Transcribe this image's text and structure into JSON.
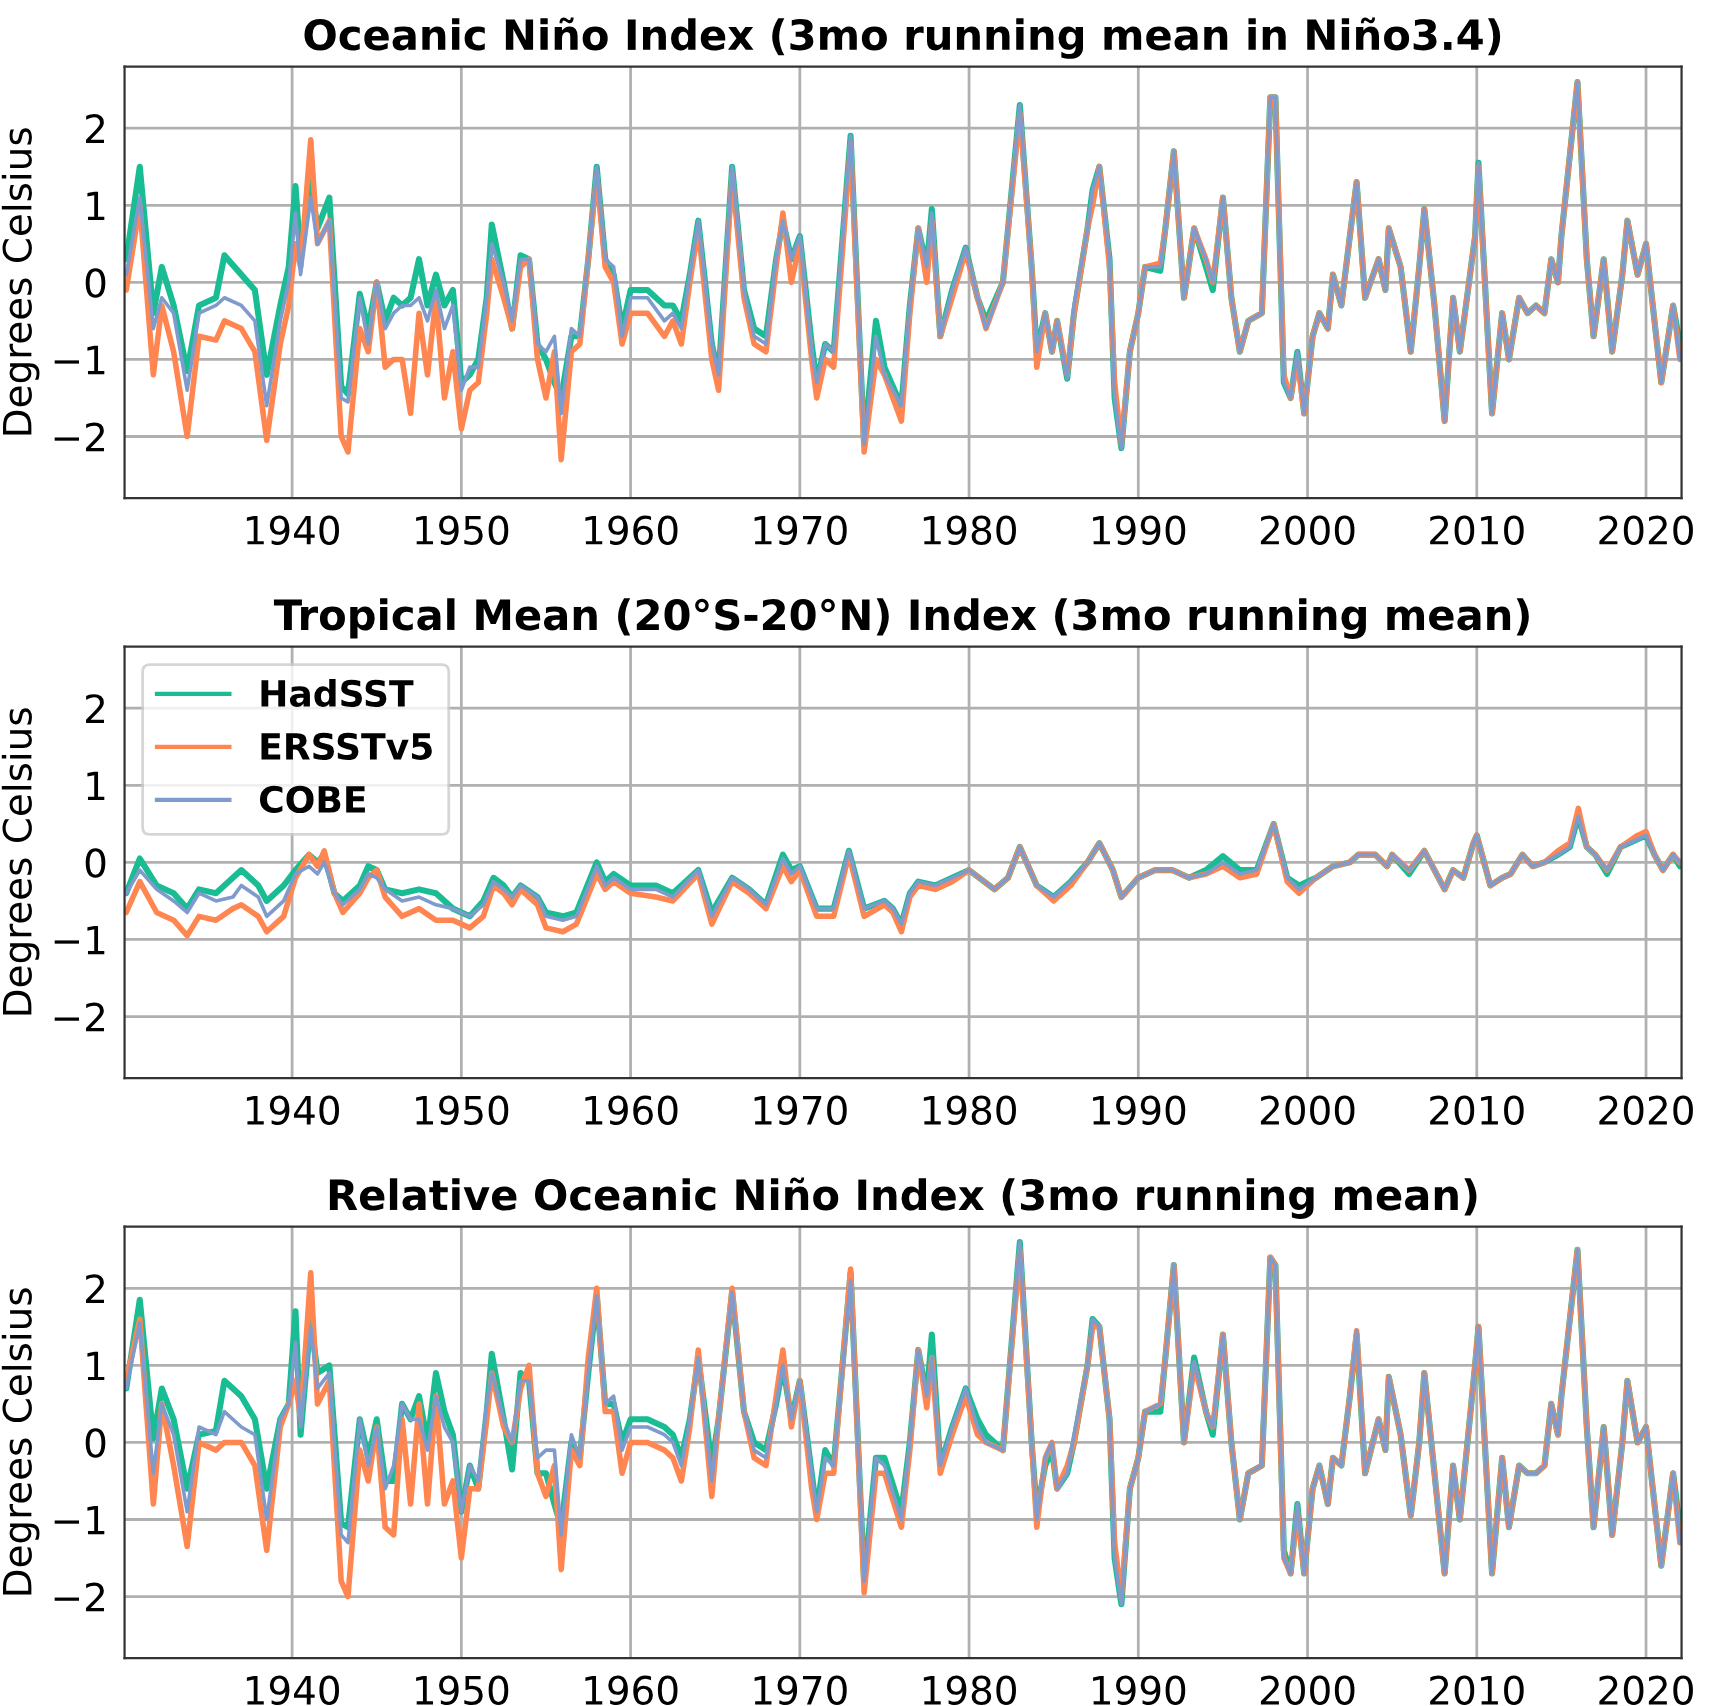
{
  "chart_data": [
    {
      "type": "line",
      "title": "Oceanic Niño Index (3mo running mean in Niño3.4)",
      "ylabel": "Degrees Celsius",
      "xlim": [
        1930.1,
        2022.1
      ],
      "ylim": [
        -2.8,
        2.8
      ],
      "xticks": [
        1940,
        1950,
        1960,
        1970,
        1980,
        1990,
        2000,
        2010,
        2020
      ],
      "yticks": [
        -2,
        -1,
        0,
        1,
        2
      ],
      "grid": true,
      "x": [
        1930.2,
        1931.0,
        1931.8,
        1932.3,
        1933.0,
        1933.8,
        1934.5,
        1935.5,
        1936.0,
        1937.0,
        1937.8,
        1938.5,
        1939.3,
        1939.8,
        1940.2,
        1940.5,
        1941.1,
        1941.5,
        1942.2,
        1942.9,
        1943.3,
        1944.0,
        1944.5,
        1945.0,
        1945.5,
        1946.0,
        1946.5,
        1947.0,
        1947.5,
        1948.0,
        1948.5,
        1949.0,
        1949.5,
        1950.0,
        1950.5,
        1951.0,
        1951.5,
        1951.8,
        1952.5,
        1953.0,
        1953.5,
        1954.0,
        1954.5,
        1955.0,
        1955.5,
        1955.9,
        1956.5,
        1957.0,
        1957.5,
        1958.0,
        1958.5,
        1959.0,
        1959.5,
        1960.0,
        1961.0,
        1962.0,
        1962.5,
        1963.0,
        1963.5,
        1964.0,
        1964.8,
        1965.2,
        1966.0,
        1966.7,
        1967.3,
        1968.0,
        1968.6,
        1969.0,
        1969.5,
        1970.0,
        1970.7,
        1971.0,
        1971.5,
        1972.0,
        1973.0,
        1973.8,
        1974.5,
        1975.0,
        1976.0,
        1976.5,
        1977.0,
        1977.5,
        1977.8,
        1978.3,
        1979.0,
        1979.8,
        1980.5,
        1981.0,
        1982.0,
        1983.0,
        1983.7,
        1984.0,
        1984.5,
        1984.9,
        1985.2,
        1985.8,
        1986.2,
        1987.0,
        1987.3,
        1987.7,
        1988.3,
        1988.6,
        1989.0,
        1989.5,
        1990.0,
        1990.4,
        1991.3,
        1991.6,
        1992.1,
        1992.7,
        1993.3,
        1994.0,
        1994.4,
        1995.0,
        1995.5,
        1996.0,
        1996.5,
        1997.3,
        1997.8,
        1998.1,
        1998.6,
        1999.0,
        1999.4,
        1999.8,
        2000.3,
        2000.7,
        2001.2,
        2001.5,
        2002.0,
        2002.5,
        2002.9,
        2003.4,
        2004.2,
        2004.6,
        2004.8,
        2005.5,
        2006.1,
        2006.6,
        2006.9,
        2007.5,
        2008.1,
        2008.6,
        2009.0,
        2009.9,
        2010.1,
        2010.9,
        2011.5,
        2011.9,
        2012.5,
        2013.0,
        2013.5,
        2014.0,
        2014.4,
        2014.8,
        2015.0,
        2015.95,
        2016.5,
        2016.9,
        2017.5,
        2018.0,
        2018.6,
        2018.9,
        2019.5,
        2020.0,
        2020.9,
        2021.6,
        2022.0
      ],
      "series": [
        {
          "color": "#1abc94",
          "values": [
            0.3,
            1.5,
            -0.4,
            0.2,
            -0.3,
            -1.15,
            -0.3,
            -0.2,
            0.35,
            0.1,
            -0.1,
            -1.2,
            -0.3,
            0.2,
            1.25,
            0.3,
            1.3,
            0.7,
            1.1,
            -1.35,
            -1.45,
            -0.15,
            -0.6,
            0.0,
            -0.5,
            -0.2,
            -0.3,
            -0.2,
            0.3,
            -0.3,
            0.1,
            -0.3,
            -0.1,
            -1.3,
            -1.2,
            -1.0,
            -0.2,
            0.75,
            0.0,
            -0.6,
            0.35,
            0.3,
            -0.8,
            -1.0,
            -1.3,
            -1.5,
            -0.7,
            -0.7,
            0.3,
            1.5,
            0.3,
            0.1,
            -0.6,
            -0.1,
            -0.1,
            -0.3,
            -0.3,
            -0.5,
            0.1,
            0.8,
            -0.8,
            -1.2,
            1.5,
            -0.1,
            -0.6,
            -0.7,
            0.3,
            0.8,
            0.3,
            0.6,
            -0.8,
            -1.3,
            -0.8,
            -0.9,
            1.9,
            -2.1,
            -0.5,
            -1.1,
            -1.6,
            -0.3,
            0.7,
            0.2,
            0.95,
            -0.7,
            -0.1,
            0.45,
            -0.2,
            -0.5,
            0.0,
            2.3,
            0.2,
            -0.9,
            -0.4,
            -0.9,
            -0.5,
            -1.25,
            -0.4,
            0.7,
            1.2,
            1.5,
            0.3,
            -1.5,
            -2.15,
            -0.9,
            -0.4,
            0.2,
            0.15,
            0.7,
            1.7,
            -0.2,
            0.7,
            0.2,
            -0.1,
            1.1,
            -0.2,
            -0.9,
            -0.5,
            -0.4,
            2.4,
            2.4,
            -1.3,
            -1.5,
            -0.9,
            -1.7,
            -0.7,
            -0.4,
            -0.6,
            0.1,
            -0.3,
            0.6,
            1.3,
            -0.2,
            0.3,
            -0.1,
            0.7,
            0.2,
            -0.9,
            0.2,
            0.95,
            -0.3,
            -1.8,
            -0.2,
            -0.9,
            0.6,
            1.55,
            -1.7,
            -0.4,
            -1.0,
            -0.2,
            -0.4,
            -0.3,
            -0.4,
            0.3,
            0.0,
            0.6,
            2.6,
            0.3,
            -0.7,
            0.3,
            -0.9,
            0.1,
            0.8,
            0.1,
            0.5,
            -1.3,
            -0.3,
            -0.8
          ]
        },
        {
          "color": "#ff8650",
          "values": [
            -0.1,
            1.0,
            -1.2,
            -0.3,
            -0.9,
            -2.0,
            -0.7,
            -0.75,
            -0.5,
            -0.6,
            -0.9,
            -2.05,
            -0.8,
            -0.3,
            0.5,
            0.2,
            1.85,
            0.5,
            0.8,
            -2.0,
            -2.2,
            -0.6,
            -0.9,
            0.0,
            -1.1,
            -1.0,
            -1.0,
            -1.7,
            -0.4,
            -1.2,
            -0.2,
            -1.5,
            -0.9,
            -1.9,
            -1.4,
            -1.3,
            -0.4,
            0.3,
            -0.2,
            -0.6,
            0.2,
            0.3,
            -1.0,
            -1.5,
            -0.9,
            -2.3,
            -0.9,
            -0.8,
            0.3,
            1.4,
            0.2,
            0.0,
            -0.8,
            -0.4,
            -0.4,
            -0.7,
            -0.5,
            -0.8,
            0.0,
            0.7,
            -1.0,
            -1.4,
            1.4,
            -0.2,
            -0.8,
            -0.9,
            0.2,
            0.9,
            0.0,
            0.5,
            -1.0,
            -1.5,
            -1.0,
            -1.1,
            1.8,
            -2.2,
            -1.0,
            -1.2,
            -1.8,
            -0.4,
            0.7,
            0.0,
            0.8,
            -0.7,
            -0.2,
            0.4,
            -0.2,
            -0.6,
            0.0,
            2.2,
            0.2,
            -1.1,
            -0.4,
            -0.9,
            -0.5,
            -1.2,
            -0.4,
            0.7,
            1.0,
            1.5,
            0.2,
            -1.3,
            -2.1,
            -0.9,
            -0.4,
            0.2,
            0.25,
            0.7,
            1.7,
            -0.2,
            0.7,
            0.3,
            0.0,
            1.1,
            -0.2,
            -0.9,
            -0.5,
            -0.4,
            2.4,
            2.4,
            -1.2,
            -1.5,
            -1.0,
            -1.7,
            -0.7,
            -0.4,
            -0.6,
            0.1,
            -0.3,
            0.6,
            1.3,
            -0.2,
            0.3,
            -0.1,
            0.7,
            0.2,
            -0.9,
            0.2,
            0.95,
            -0.3,
            -1.8,
            -0.2,
            -0.9,
            0.6,
            1.5,
            -1.7,
            -0.4,
            -1.0,
            -0.2,
            -0.4,
            -0.3,
            -0.4,
            0.3,
            0.0,
            0.6,
            2.6,
            0.3,
            -0.7,
            0.3,
            -0.9,
            0.1,
            0.8,
            0.1,
            0.5,
            -1.3,
            -0.3,
            -1.0
          ]
        },
        {
          "color": "#7f9acc",
          "values": [
            0.1,
            1.1,
            -0.6,
            -0.2,
            -0.4,
            -1.4,
            -0.4,
            -0.3,
            -0.2,
            -0.3,
            -0.5,
            -1.6,
            -0.5,
            0.0,
            0.9,
            0.1,
            1.1,
            0.5,
            0.8,
            -1.5,
            -1.55,
            -0.2,
            -0.8,
            0.0,
            -0.6,
            -0.4,
            -0.3,
            -0.3,
            -0.2,
            -0.5,
            -0.1,
            -0.6,
            -0.3,
            -1.4,
            -1.1,
            -1.1,
            -0.2,
            0.5,
            0.0,
            -0.5,
            0.3,
            0.3,
            -0.8,
            -0.9,
            -0.7,
            -1.7,
            -0.6,
            -0.7,
            0.3,
            1.5,
            0.3,
            0.2,
            -0.7,
            -0.2,
            -0.2,
            -0.5,
            -0.4,
            -0.6,
            0.1,
            0.8,
            -0.8,
            -1.2,
            1.5,
            -0.1,
            -0.7,
            -0.8,
            0.3,
            0.8,
            0.3,
            0.6,
            -0.9,
            -1.3,
            -0.8,
            -0.9,
            1.9,
            -2.1,
            -0.7,
            -1.2,
            -1.6,
            -0.3,
            0.7,
            0.2,
            0.9,
            -0.7,
            -0.1,
            0.45,
            -0.2,
            -0.6,
            0.0,
            2.3,
            0.2,
            -0.9,
            -0.4,
            -0.9,
            -0.5,
            -1.25,
            -0.3,
            0.7,
            1.2,
            1.5,
            0.3,
            -1.5,
            -2.15,
            -0.9,
            -0.4,
            0.2,
            0.2,
            0.7,
            1.7,
            -0.2,
            0.7,
            0.3,
            0.0,
            1.1,
            -0.2,
            -0.9,
            -0.5,
            -0.4,
            2.4,
            2.4,
            -1.3,
            -1.5,
            -0.9,
            -1.7,
            -0.7,
            -0.4,
            -0.6,
            0.1,
            -0.3,
            0.6,
            1.3,
            -0.2,
            0.3,
            -0.1,
            0.7,
            0.2,
            -0.9,
            0.2,
            0.95,
            -0.3,
            -1.8,
            -0.2,
            -0.9,
            0.6,
            1.55,
            -1.7,
            -0.4,
            -1.0,
            -0.2,
            -0.4,
            -0.3,
            -0.4,
            0.3,
            0.0,
            0.6,
            2.6,
            0.3,
            -0.7,
            0.3,
            -0.9,
            0.1,
            0.8,
            0.1,
            0.5,
            -1.3,
            -0.3,
            -1.0
          ]
        }
      ]
    },
    {
      "type": "line",
      "title": "Tropical Mean (20°S-20°N) Index (3mo running mean)",
      "ylabel": "Degrees Celsius",
      "xlim": [
        1930.1,
        2022.1
      ],
      "ylim": [
        -2.8,
        2.8
      ],
      "xticks": [
        1940,
        1950,
        1960,
        1970,
        1980,
        1990,
        2000,
        2010,
        2020
      ],
      "yticks": [
        -2,
        -1,
        0,
        1,
        2
      ],
      "grid": true,
      "legend": "top left",
      "x": [
        1930.2,
        1931.0,
        1932.0,
        1933.0,
        1933.8,
        1934.5,
        1935.5,
        1936.5,
        1937.0,
        1938.0,
        1938.5,
        1939.5,
        1940.2,
        1941.0,
        1941.5,
        1941.9,
        1942.5,
        1943.0,
        1944.0,
        1944.5,
        1945.0,
        1945.5,
        1946.5,
        1947.5,
        1948.5,
        1949.5,
        1950.5,
        1951.3,
        1951.9,
        1952.5,
        1953.0,
        1953.5,
        1954.5,
        1955.0,
        1956.0,
        1956.8,
        1958.0,
        1958.5,
        1959.0,
        1960.0,
        1961.5,
        1962.5,
        1964.0,
        1964.8,
        1966.0,
        1967.0,
        1968.0,
        1969.0,
        1969.5,
        1970.0,
        1971.0,
        1972.0,
        1972.9,
        1973.8,
        1975.0,
        1975.5,
        1976.0,
        1976.5,
        1977.0,
        1978.0,
        1979.0,
        1980.0,
        1981.5,
        1982.3,
        1983.0,
        1984.0,
        1985.0,
        1986.0,
        1987.0,
        1987.7,
        1988.5,
        1989.0,
        1990.0,
        1991.0,
        1992.0,
        1993.0,
        1994.0,
        1995.0,
        1996.0,
        1997.0,
        1998.0,
        1998.8,
        1999.5,
        2000.5,
        2001.5,
        2002.5,
        2003.0,
        2004.0,
        2004.7,
        2005.0,
        2006.0,
        2006.9,
        2007.5,
        2008.1,
        2008.6,
        2009.2,
        2009.8,
        2010.0,
        2010.8,
        2011.5,
        2012.0,
        2012.7,
        2013.3,
        2014.0,
        2014.8,
        2015.5,
        2016.0,
        2016.5,
        2017.0,
        2017.7,
        2018.5,
        2019.5,
        2020.0,
        2020.5,
        2021.0,
        2021.6,
        2022.0
      ],
      "series": [
        {
          "name": "HadSST",
          "color": "#1abc94",
          "values": [
            -0.4,
            0.05,
            -0.3,
            -0.4,
            -0.6,
            -0.35,
            -0.4,
            -0.2,
            -0.1,
            -0.3,
            -0.5,
            -0.3,
            -0.1,
            0.1,
            0.0,
            0.1,
            -0.4,
            -0.5,
            -0.3,
            -0.05,
            -0.1,
            -0.35,
            -0.4,
            -0.35,
            -0.4,
            -0.6,
            -0.7,
            -0.5,
            -0.2,
            -0.3,
            -0.45,
            -0.3,
            -0.45,
            -0.65,
            -0.7,
            -0.65,
            0.0,
            -0.25,
            -0.15,
            -0.3,
            -0.3,
            -0.4,
            -0.1,
            -0.65,
            -0.2,
            -0.35,
            -0.55,
            0.1,
            -0.1,
            -0.05,
            -0.6,
            -0.6,
            0.15,
            -0.6,
            -0.5,
            -0.6,
            -0.8,
            -0.4,
            -0.25,
            -0.3,
            -0.2,
            -0.1,
            -0.35,
            -0.2,
            0.2,
            -0.3,
            -0.45,
            -0.25,
            0.0,
            0.25,
            -0.1,
            -0.45,
            -0.2,
            -0.1,
            -0.1,
            -0.2,
            -0.1,
            0.08,
            -0.1,
            -0.1,
            0.5,
            -0.2,
            -0.3,
            -0.2,
            -0.05,
            0.0,
            0.1,
            0.1,
            -0.05,
            0.1,
            -0.15,
            0.15,
            -0.1,
            -0.35,
            -0.1,
            -0.2,
            0.25,
            0.35,
            -0.3,
            -0.2,
            -0.15,
            0.1,
            -0.05,
            0.0,
            0.1,
            0.2,
            0.6,
            0.2,
            0.1,
            -0.15,
            0.2,
            0.3,
            0.35,
            0.1,
            -0.1,
            0.1,
            -0.05
          ]
        },
        {
          "name": "ERSSTv5",
          "color": "#ff8650",
          "values": [
            -0.65,
            -0.25,
            -0.65,
            -0.75,
            -0.95,
            -0.7,
            -0.75,
            -0.6,
            -0.55,
            -0.7,
            -0.9,
            -0.7,
            -0.2,
            0.1,
            -0.05,
            0.15,
            -0.4,
            -0.65,
            -0.4,
            -0.2,
            -0.1,
            -0.45,
            -0.7,
            -0.6,
            -0.75,
            -0.75,
            -0.85,
            -0.7,
            -0.3,
            -0.4,
            -0.55,
            -0.35,
            -0.55,
            -0.85,
            -0.9,
            -0.8,
            -0.15,
            -0.35,
            -0.25,
            -0.4,
            -0.45,
            -0.5,
            -0.15,
            -0.8,
            -0.25,
            -0.4,
            -0.6,
            -0.05,
            -0.25,
            -0.1,
            -0.7,
            -0.7,
            0.1,
            -0.7,
            -0.55,
            -0.65,
            -0.9,
            -0.45,
            -0.3,
            -0.35,
            -0.25,
            -0.1,
            -0.35,
            -0.2,
            0.2,
            -0.3,
            -0.5,
            -0.3,
            0.0,
            0.25,
            -0.1,
            -0.45,
            -0.2,
            -0.1,
            -0.1,
            -0.2,
            -0.15,
            -0.05,
            -0.2,
            -0.15,
            0.5,
            -0.25,
            -0.4,
            -0.2,
            -0.05,
            0.0,
            0.1,
            0.1,
            -0.05,
            0.1,
            -0.1,
            0.15,
            -0.1,
            -0.35,
            -0.1,
            -0.2,
            0.25,
            0.35,
            -0.3,
            -0.2,
            -0.15,
            0.1,
            -0.05,
            0.0,
            0.15,
            0.25,
            0.7,
            0.2,
            0.1,
            -0.1,
            0.2,
            0.35,
            0.4,
            0.1,
            -0.1,
            0.1,
            0.0
          ]
        },
        {
          "name": "COBE",
          "color": "#7f9acc",
          "values": [
            -0.4,
            -0.1,
            -0.35,
            -0.5,
            -0.65,
            -0.4,
            -0.5,
            -0.45,
            -0.3,
            -0.45,
            -0.7,
            -0.5,
            -0.15,
            -0.05,
            -0.15,
            0.0,
            -0.4,
            -0.55,
            -0.35,
            -0.15,
            -0.2,
            -0.35,
            -0.5,
            -0.45,
            -0.55,
            -0.6,
            -0.7,
            -0.55,
            -0.25,
            -0.35,
            -0.45,
            -0.3,
            -0.45,
            -0.7,
            -0.75,
            -0.7,
            -0.05,
            -0.3,
            -0.2,
            -0.35,
            -0.35,
            -0.45,
            -0.1,
            -0.7,
            -0.2,
            -0.35,
            -0.55,
            0.05,
            -0.15,
            -0.05,
            -0.6,
            -0.6,
            0.15,
            -0.6,
            -0.5,
            -0.6,
            -0.8,
            -0.4,
            -0.25,
            -0.3,
            -0.2,
            -0.1,
            -0.35,
            -0.2,
            0.2,
            -0.3,
            -0.45,
            -0.25,
            0.0,
            0.25,
            -0.1,
            -0.45,
            -0.2,
            -0.1,
            -0.1,
            -0.2,
            -0.15,
            0.0,
            -0.15,
            -0.1,
            0.5,
            -0.2,
            -0.35,
            -0.2,
            -0.05,
            0.0,
            0.1,
            0.1,
            -0.05,
            0.1,
            -0.1,
            0.15,
            -0.1,
            -0.35,
            -0.1,
            -0.2,
            0.25,
            0.35,
            -0.3,
            -0.2,
            -0.15,
            0.1,
            -0.05,
            0.0,
            0.1,
            0.2,
            0.6,
            0.2,
            0.1,
            -0.1,
            0.2,
            0.3,
            0.35,
            0.1,
            -0.1,
            0.1,
            0.0
          ]
        }
      ]
    },
    {
      "type": "line",
      "title": "Relative Oceanic Niño Index (3mo running mean)",
      "ylabel": "Degrees Celsius",
      "xlim": [
        1930.1,
        2022.1
      ],
      "ylim": [
        -2.8,
        2.8
      ],
      "xticks": [
        1940,
        1950,
        1960,
        1970,
        1980,
        1990,
        2000,
        2010,
        2020
      ],
      "yticks": [
        -2,
        -1,
        0,
        1,
        2
      ],
      "grid": true,
      "x": [
        1930.2,
        1931.0,
        1931.8,
        1932.3,
        1933.0,
        1933.8,
        1934.5,
        1935.5,
        1936.0,
        1937.0,
        1937.8,
        1938.5,
        1939.3,
        1939.8,
        1940.2,
        1940.5,
        1941.1,
        1941.5,
        1942.2,
        1942.9,
        1943.3,
        1944.0,
        1944.5,
        1945.0,
        1945.5,
        1946.0,
        1946.5,
        1947.0,
        1947.5,
        1948.0,
        1948.5,
        1949.0,
        1949.5,
        1950.0,
        1950.5,
        1951.0,
        1951.5,
        1951.8,
        1952.5,
        1953.0,
        1953.5,
        1954.0,
        1954.5,
        1955.0,
        1955.5,
        1955.9,
        1956.5,
        1957.0,
        1957.5,
        1958.0,
        1958.5,
        1959.0,
        1959.5,
        1960.0,
        1961.0,
        1962.0,
        1962.5,
        1963.0,
        1963.5,
        1964.0,
        1964.8,
        1965.2,
        1966.0,
        1966.7,
        1967.3,
        1968.0,
        1968.6,
        1969.0,
        1969.5,
        1970.0,
        1970.7,
        1971.0,
        1971.5,
        1972.0,
        1973.0,
        1973.8,
        1974.5,
        1975.0,
        1976.0,
        1976.5,
        1977.0,
        1977.5,
        1977.8,
        1978.3,
        1979.0,
        1979.8,
        1980.5,
        1981.0,
        1982.0,
        1983.0,
        1983.7,
        1984.0,
        1984.5,
        1984.9,
        1985.2,
        1985.8,
        1986.2,
        1987.0,
        1987.3,
        1987.7,
        1988.3,
        1988.6,
        1989.0,
        1989.5,
        1990.0,
        1990.4,
        1991.3,
        1991.6,
        1992.1,
        1992.7,
        1993.3,
        1994.0,
        1994.4,
        1995.0,
        1995.5,
        1996.0,
        1996.5,
        1997.3,
        1997.8,
        1998.1,
        1998.6,
        1999.0,
        1999.4,
        1999.8,
        2000.3,
        2000.7,
        2001.2,
        2001.5,
        2002.0,
        2002.5,
        2002.9,
        2003.4,
        2004.2,
        2004.6,
        2004.8,
        2005.5,
        2006.1,
        2006.6,
        2006.9,
        2007.5,
        2008.1,
        2008.6,
        2009.0,
        2009.9,
        2010.1,
        2010.9,
        2011.5,
        2011.9,
        2012.5,
        2013.0,
        2013.5,
        2014.0,
        2014.4,
        2014.8,
        2015.0,
        2015.95,
        2016.5,
        2016.9,
        2017.5,
        2018.0,
        2018.6,
        2018.9,
        2019.5,
        2020.0,
        2020.9,
        2021.6,
        2022.0
      ],
      "series": [
        {
          "color": "#1abc94",
          "values": [
            0.7,
            1.85,
            0.05,
            0.7,
            0.3,
            -0.6,
            0.1,
            0.15,
            0.8,
            0.6,
            0.3,
            -0.6,
            0.3,
            0.5,
            1.7,
            0.1,
            1.6,
            0.9,
            1.0,
            -1.05,
            -1.1,
            0.3,
            -0.2,
            0.3,
            -0.5,
            -0.5,
            0.5,
            0.3,
            0.6,
            0.0,
            0.9,
            0.4,
            0.1,
            -0.9,
            -0.3,
            -0.6,
            0.4,
            1.15,
            0.3,
            -0.35,
            0.9,
            0.8,
            -0.4,
            -0.4,
            -0.8,
            -1.1,
            0.0,
            -0.2,
            0.9,
            1.9,
            0.5,
            0.5,
            0.0,
            0.3,
            0.3,
            0.2,
            0.1,
            -0.2,
            0.3,
            1.1,
            -0.3,
            0.3,
            1.95,
            0.4,
            0.0,
            -0.1,
            0.5,
            1.0,
            0.3,
            0.8,
            -0.4,
            -0.9,
            -0.1,
            -0.3,
            2.2,
            -1.8,
            -0.2,
            -0.2,
            -0.9,
            0.0,
            1.2,
            0.6,
            1.4,
            -0.3,
            0.2,
            0.7,
            0.3,
            0.1,
            -0.1,
            2.6,
            0.0,
            -0.9,
            -0.3,
            -0.1,
            -0.6,
            -0.4,
            0.0,
            1.0,
            1.6,
            1.5,
            0.3,
            -1.5,
            -2.1,
            -0.6,
            -0.2,
            0.4,
            0.4,
            1.1,
            2.3,
            0.0,
            1.1,
            0.4,
            0.1,
            1.4,
            0.0,
            -1.0,
            -0.4,
            -0.3,
            2.4,
            2.3,
            -1.4,
            -1.7,
            -0.8,
            -1.7,
            -0.6,
            -0.3,
            -0.8,
            -0.2,
            -0.3,
            0.6,
            1.4,
            -0.4,
            0.3,
            -0.1,
            0.85,
            0.1,
            -0.95,
            0.0,
            0.9,
            -0.4,
            -1.7,
            -0.3,
            -1.0,
            1.0,
            1.5,
            -1.7,
            -0.2,
            -1.1,
            -0.3,
            -0.4,
            -0.4,
            -0.3,
            0.5,
            0.1,
            0.6,
            2.5,
            0.2,
            -1.1,
            0.2,
            -1.2,
            0.0,
            0.8,
            0.0,
            0.2,
            -1.6,
            -0.4,
            -1.1
          ]
        },
        {
          "color": "#ff8650",
          "values": [
            0.8,
            1.6,
            -0.8,
            0.5,
            -0.3,
            -1.35,
            0.0,
            -0.1,
            0.0,
            0.0,
            -0.3,
            -1.4,
            0.2,
            0.5,
            0.8,
            0.3,
            2.2,
            0.5,
            0.8,
            -1.8,
            -2.0,
            -0.1,
            -0.5,
            0.2,
            -1.1,
            -1.2,
            0.3,
            -0.8,
            0.5,
            -0.8,
            0.6,
            -0.8,
            -0.5,
            -1.5,
            -0.6,
            -0.6,
            0.3,
            0.9,
            0.2,
            0.0,
            0.7,
            1.0,
            -0.4,
            -0.7,
            -0.3,
            -1.65,
            -0.1,
            -0.3,
            1.1,
            2.0,
            0.4,
            0.4,
            -0.4,
            0.0,
            0.0,
            -0.1,
            -0.2,
            -0.5,
            0.2,
            1.2,
            -0.7,
            0.3,
            2.0,
            0.4,
            -0.2,
            -0.3,
            0.6,
            1.2,
            0.2,
            0.8,
            -0.6,
            -1.0,
            -0.4,
            -0.4,
            2.25,
            -1.95,
            -0.4,
            -0.4,
            -1.1,
            -0.1,
            1.2,
            0.45,
            1.1,
            -0.4,
            0.1,
            0.6,
            0.1,
            0.0,
            -0.1,
            2.5,
            0.0,
            -1.1,
            -0.2,
            0.0,
            -0.6,
            -0.3,
            0.0,
            1.0,
            1.5,
            1.5,
            0.3,
            -1.3,
            -2.0,
            -0.6,
            -0.2,
            0.4,
            0.5,
            1.1,
            2.3,
            0.0,
            1.0,
            0.4,
            0.2,
            1.4,
            0.0,
            -1.0,
            -0.4,
            -0.3,
            2.4,
            2.3,
            -1.5,
            -1.7,
            -0.9,
            -1.7,
            -0.6,
            -0.3,
            -0.8,
            -0.2,
            -0.3,
            0.6,
            1.45,
            -0.4,
            0.3,
            -0.1,
            0.85,
            0.1,
            -0.95,
            0.0,
            0.9,
            -0.4,
            -1.7,
            -0.3,
            -1.0,
            1.0,
            1.5,
            -1.7,
            -0.2,
            -1.1,
            -0.3,
            -0.4,
            -0.4,
            -0.3,
            0.5,
            0.1,
            0.6,
            2.5,
            0.2,
            -1.1,
            0.2,
            -1.2,
            0.0,
            0.8,
            0.0,
            0.2,
            -1.6,
            -0.4,
            -1.3
          ]
        },
        {
          "color": "#7f9acc",
          "values": [
            0.7,
            1.55,
            -0.4,
            0.5,
            0.1,
            -0.9,
            0.2,
            0.1,
            0.4,
            0.2,
            0.1,
            -1.0,
            0.3,
            0.5,
            1.3,
            0.2,
            1.5,
            0.7,
            0.9,
            -1.2,
            -1.3,
            0.3,
            -0.3,
            0.2,
            -0.6,
            -0.3,
            0.5,
            0.3,
            0.3,
            -0.1,
            0.6,
            0.2,
            0.0,
            -0.9,
            -0.3,
            -0.5,
            0.5,
            0.9,
            0.3,
            0.0,
            0.8,
            0.8,
            -0.2,
            -0.1,
            -0.1,
            -1.2,
            0.1,
            -0.2,
            0.9,
            1.9,
            0.5,
            0.6,
            -0.1,
            0.2,
            0.2,
            0.1,
            0.0,
            -0.3,
            0.3,
            1.1,
            -0.5,
            0.3,
            1.95,
            0.4,
            -0.1,
            -0.2,
            0.5,
            1.0,
            0.3,
            0.8,
            -0.4,
            -0.9,
            -0.2,
            -0.3,
            2.1,
            -1.8,
            -0.2,
            -0.3,
            -1.0,
            0.0,
            1.2,
            0.6,
            1.1,
            -0.3,
            0.2,
            0.7,
            0.2,
            0.0,
            -0.1,
            2.6,
            0.0,
            -1.0,
            -0.2,
            0.0,
            -0.6,
            -0.4,
            0.1,
            1.0,
            1.6,
            1.5,
            0.3,
            -1.5,
            -2.1,
            -0.6,
            -0.2,
            0.4,
            0.5,
            1.1,
            2.3,
            0.0,
            1.05,
            0.4,
            0.2,
            1.4,
            0.0,
            -1.0,
            -0.4,
            -0.3,
            2.4,
            2.3,
            -1.5,
            -1.7,
            -0.8,
            -1.7,
            -0.6,
            -0.3,
            -0.8,
            -0.2,
            -0.3,
            0.6,
            1.45,
            -0.4,
            0.3,
            -0.1,
            0.85,
            0.1,
            -0.95,
            0.0,
            0.9,
            -0.4,
            -1.7,
            -0.3,
            -1.0,
            1.0,
            1.5,
            -1.7,
            -0.2,
            -1.1,
            -0.3,
            -0.4,
            -0.4,
            -0.3,
            0.5,
            0.1,
            0.6,
            2.5,
            0.2,
            -1.1,
            0.2,
            -1.2,
            0.0,
            0.8,
            0.0,
            0.2,
            -1.6,
            -0.4,
            -1.3
          ]
        }
      ]
    }
  ]
}
